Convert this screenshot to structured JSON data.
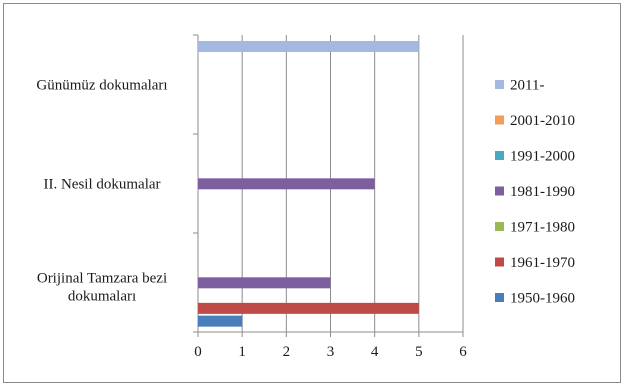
{
  "chart_data": {
    "type": "bar",
    "orientation": "horizontal",
    "categories": [
      "Günümüz dokumaları",
      "II. Nesil dokumalar",
      "Orijinal Tamzara bezi dokumaları"
    ],
    "series": [
      {
        "name": "1950-1960",
        "color": "#4a7ebb",
        "values": [
          0,
          0,
          1
        ]
      },
      {
        "name": "1961-1970",
        "color": "#be4b48",
        "values": [
          0,
          0,
          5
        ]
      },
      {
        "name": "1971-1980",
        "color": "#98b954",
        "values": [
          0,
          0,
          0
        ]
      },
      {
        "name": "1981-1990",
        "color": "#7d5fa0",
        "values": [
          0,
          4,
          3
        ]
      },
      {
        "name": "1991-2000",
        "color": "#46aac5",
        "values": [
          0,
          0,
          0
        ]
      },
      {
        "name": "2001-2010",
        "color": "#f59d56",
        "values": [
          0,
          0,
          0
        ]
      },
      {
        "name": "2011-",
        "color": "#a5b9e0",
        "values": [
          5,
          0,
          0
        ]
      }
    ],
    "xlim": [
      0,
      6
    ],
    "xticks": [
      "0",
      "1",
      "2",
      "3",
      "4",
      "5",
      "6"
    ],
    "grid": true,
    "legend_position": "right",
    "title": "",
    "xlabel": "",
    "ylabel": ""
  }
}
